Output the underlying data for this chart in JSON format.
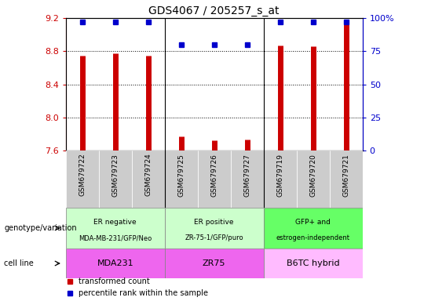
{
  "title": "GDS4067 / 205257_s_at",
  "samples": [
    "GSM679722",
    "GSM679723",
    "GSM679724",
    "GSM679725",
    "GSM679726",
    "GSM679727",
    "GSM679719",
    "GSM679720",
    "GSM679721"
  ],
  "bar_values": [
    8.75,
    8.77,
    8.75,
    7.77,
    7.72,
    7.73,
    8.87,
    8.86,
    9.17
  ],
  "percentile_right": [
    97,
    97,
    97,
    80,
    80,
    80,
    97,
    97,
    97
  ],
  "ylim": [
    7.6,
    9.2
  ],
  "yticks": [
    7.6,
    8.0,
    8.4,
    8.8,
    9.2
  ],
  "right_yticks": [
    0,
    25,
    50,
    75,
    100
  ],
  "bar_color": "#cc0000",
  "dot_color": "#0000cc",
  "genotype_groups": [
    {
      "label": "ER negative\nMDA-MB-231/GFP/Neo",
      "start": 0,
      "end": 3,
      "color": "#ccffcc"
    },
    {
      "label": "ER positive\nZR-75-1/GFP/puro",
      "start": 3,
      "end": 6,
      "color": "#ccffcc"
    },
    {
      "label": "GFP+ and\nestrogen-independent",
      "start": 6,
      "end": 9,
      "color": "#66ff66"
    }
  ],
  "cell_line_groups": [
    {
      "label": "MDA231",
      "start": 0,
      "end": 3,
      "color": "#ee66ee"
    },
    {
      "label": "ZR75",
      "start": 3,
      "end": 6,
      "color": "#ee66ee"
    },
    {
      "label": "B6TC hybrid",
      "start": 6,
      "end": 9,
      "color": "#ffbbff"
    }
  ],
  "legend_bar_label": "transformed count",
  "legend_dot_label": "percentile rank within the sample",
  "genotype_row_label": "genotype/variation",
  "cell_line_row_label": "cell line",
  "sample_bg_color": "#cccccc",
  "separator_color": "#000000"
}
